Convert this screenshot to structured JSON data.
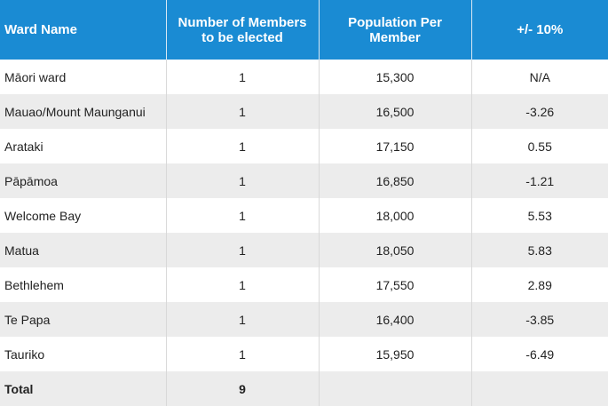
{
  "table": {
    "headers": [
      "Ward Name",
      "Number of Members to be elected",
      "Population Per Member",
      "+/- 10%"
    ],
    "rows": [
      [
        "Māori ward",
        "1",
        "15,300",
        "N/A"
      ],
      [
        "Mauao/Mount Maunganui",
        "1",
        "16,500",
        "-3.26"
      ],
      [
        "Arataki",
        "1",
        "17,150",
        "0.55"
      ],
      [
        "Pāpāmoa",
        "1",
        "16,850",
        "-1.21"
      ],
      [
        "Welcome Bay",
        "1",
        "18,000",
        "5.53"
      ],
      [
        "Matua",
        "1",
        "18,050",
        "5.83"
      ],
      [
        "Bethlehem",
        "1",
        "17,550",
        "2.89"
      ],
      [
        "Te Papa",
        "1",
        "16,400",
        "-3.85"
      ],
      [
        "Tauriko",
        "1",
        "15,950",
        "-6.49"
      ]
    ],
    "total": {
      "label": "Total",
      "members": "9",
      "population": "",
      "variance": ""
    }
  },
  "colors": {
    "header_bg": "#1a8bd3",
    "stripe_bg": "#ececec"
  }
}
